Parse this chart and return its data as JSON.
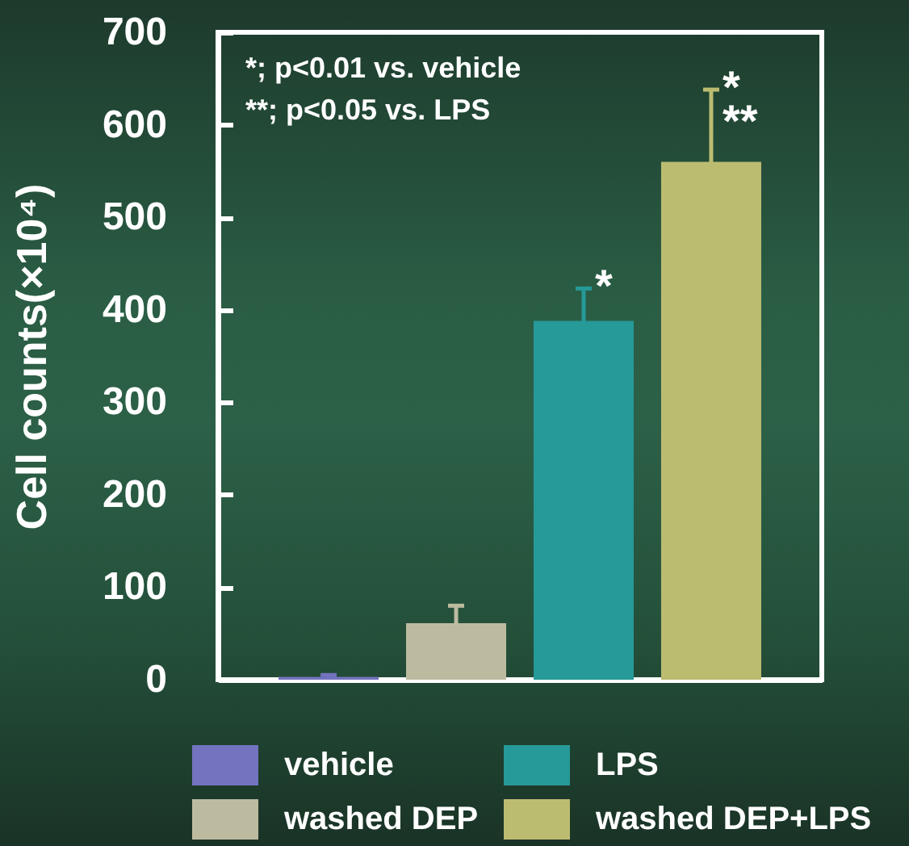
{
  "chart_data": {
    "type": "bar",
    "ylabel": "Cell counts(×10⁴)",
    "categories": [
      null,
      null,
      null,
      null
    ],
    "stacked": true,
    "series": [
      {
        "name": "vehicle",
        "color": "#7373bf",
        "values": [
          3,
          null,
          null,
          null
        ],
        "errors": [
          2,
          null,
          null,
          null
        ]
      },
      {
        "name": "washed DEP",
        "color": "#bcbba0",
        "values": [
          null,
          61,
          null,
          null
        ],
        "errors": [
          null,
          19,
          null,
          null
        ]
      },
      {
        "name": "LPS",
        "color": "#269999",
        "values": [
          null,
          null,
          388,
          null
        ],
        "errors": [
          null,
          null,
          35,
          null
        ],
        "value_labels": [
          null,
          null,
          "*",
          null
        ]
      },
      {
        "name": "washed DEP+LPS",
        "color": "#bcbc71",
        "values": [
          null,
          null,
          null,
          560
        ],
        "errors": [
          null,
          null,
          null,
          78
        ],
        "value_labels": [
          null,
          null,
          null,
          "*\n**"
        ]
      }
    ],
    "ylim": [
      0,
      700
    ],
    "yticks": [
      0,
      100,
      200,
      300,
      400,
      500,
      600,
      700
    ],
    "grid": false,
    "legend": "bottom",
    "tick_labels": "y",
    "annotations": [
      "*; p<0.01 vs. vehicle",
      "**; p<0.05 vs. LPS"
    ]
  }
}
